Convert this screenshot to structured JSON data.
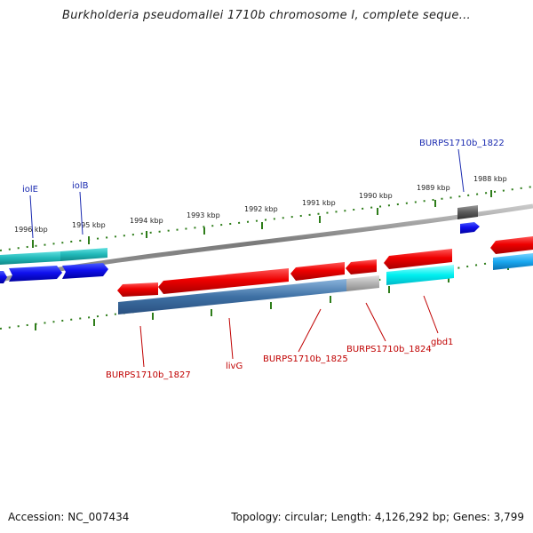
{
  "title": "Burkholderia pseudomallei 1710b chromosome I, complete seque...",
  "footer": {
    "accession": "Accession: NC_007434",
    "stats": "Topology: circular; Length: 4,126,292 bp; Genes: 3,799"
  },
  "colors": {
    "backbone": "#8a8a8a",
    "tick": "#2e7d1a",
    "forward_label": "#1a2ab0",
    "reverse_label": "#c00000"
  },
  "ruler_outer_labels": [
    "1996 kbp",
    "1995 kbp",
    "1994 kbp",
    "1993 kbp",
    "1992 kbp",
    "1991 kbp",
    "1990 kbp",
    "1989 kbp",
    "1988 kbp"
  ],
  "gene_labels": {
    "iolE": "iolE",
    "iolB": "iolB",
    "burps1822": "BURPS1710b_1822",
    "burps1827": "BURPS1710b_1827",
    "livG": "livG",
    "burps1825": "BURPS1710b_1825",
    "burps1824": "BURPS1710b_1824",
    "gbd1": "gbd1"
  }
}
